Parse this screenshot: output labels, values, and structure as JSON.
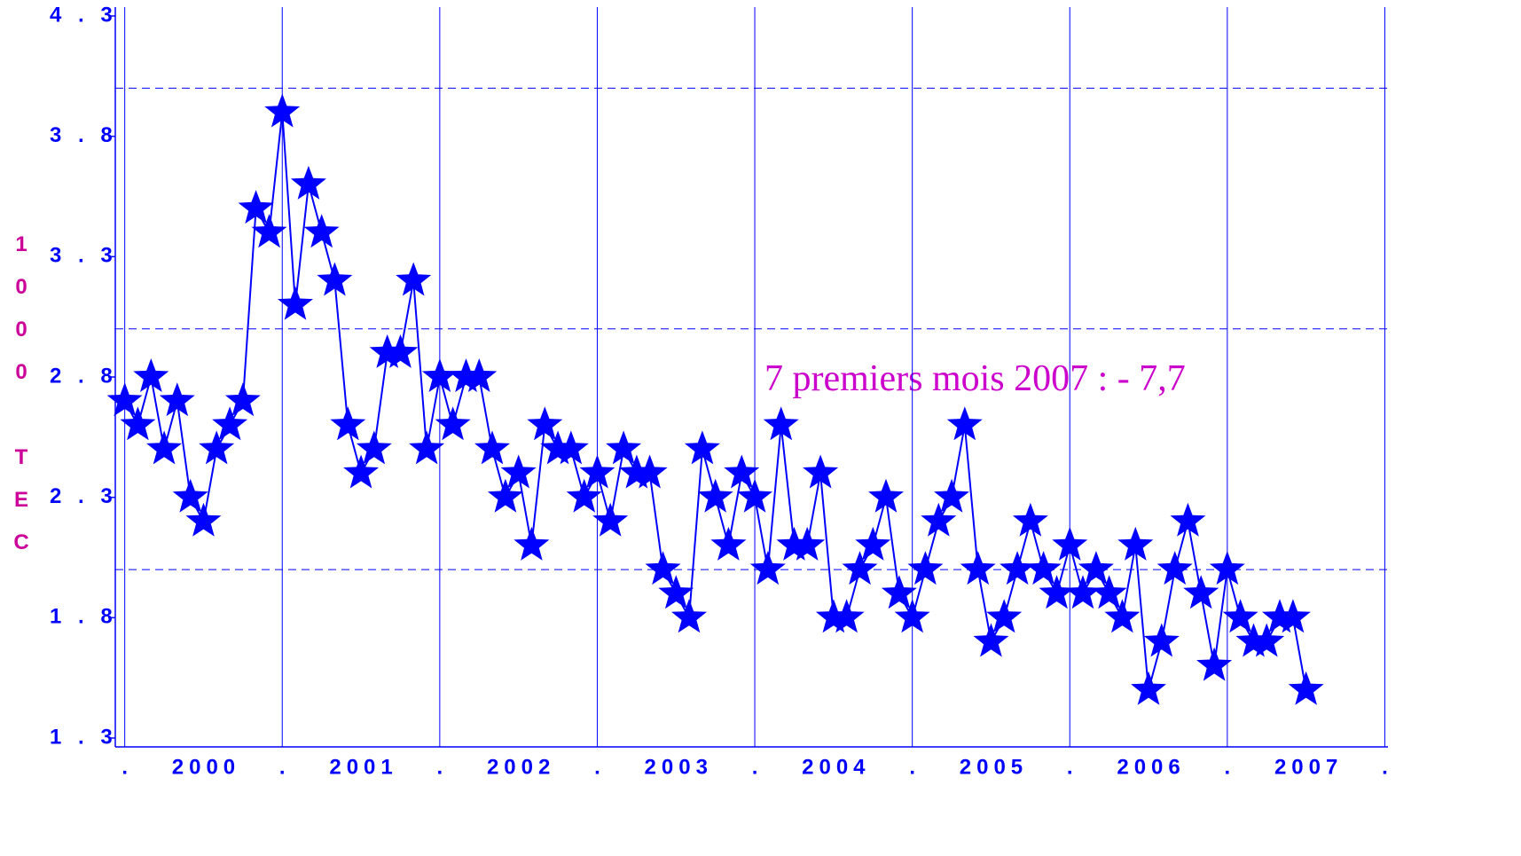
{
  "chart_data": {
    "type": "line",
    "ylabel": "1000 TEC",
    "annotation": "7 premiers mois 2007 : - 7,7",
    "color": "#0000ff",
    "marker": "star",
    "x": [
      2000,
      2000.083,
      2000.167,
      2000.25,
      2000.333,
      2000.417,
      2000.5,
      2000.583,
      2000.667,
      2000.75,
      2000.833,
      2000.917,
      2001,
      2001.083,
      2001.167,
      2001.25,
      2001.333,
      2001.417,
      2001.5,
      2001.583,
      2001.667,
      2001.75,
      2001.833,
      2001.917,
      2002,
      2002.083,
      2002.167,
      2002.25,
      2002.333,
      2002.417,
      2002.5,
      2002.583,
      2002.667,
      2002.75,
      2002.833,
      2002.917,
      2003,
      2003.083,
      2003.167,
      2003.25,
      2003.333,
      2003.417,
      2003.5,
      2003.583,
      2003.667,
      2003.75,
      2003.833,
      2003.917,
      2004,
      2004.083,
      2004.167,
      2004.25,
      2004.333,
      2004.417,
      2004.5,
      2004.583,
      2004.667,
      2004.75,
      2004.833,
      2004.917,
      2005,
      2005.083,
      2005.167,
      2005.25,
      2005.333,
      2005.417,
      2005.5,
      2005.583,
      2005.667,
      2005.75,
      2005.833,
      2005.917,
      2006,
      2006.083,
      2006.167,
      2006.25,
      2006.333,
      2006.417,
      2006.5,
      2006.583,
      2006.667,
      2006.75,
      2006.833,
      2006.917,
      2007,
      2007.083,
      2007.167,
      2007.25,
      2007.333,
      2007.417,
      2007.5
    ],
    "values": [
      2.7,
      2.6,
      2.8,
      2.5,
      2.7,
      2.3,
      2.2,
      2.5,
      2.6,
      2.7,
      3.5,
      3.4,
      3.9,
      3.1,
      3.6,
      3.4,
      3.2,
      2.6,
      2.4,
      2.5,
      2.9,
      2.9,
      3.2,
      2.5,
      2.8,
      2.6,
      2.8,
      2.8,
      2.5,
      2.3,
      2.4,
      2.1,
      2.6,
      2.5,
      2.5,
      2.3,
      2.4,
      2.2,
      2.5,
      2.4,
      2.4,
      2.0,
      1.9,
      1.8,
      2.5,
      2.3,
      2.1,
      2.4,
      2.3,
      2.0,
      2.6,
      2.1,
      2.1,
      2.4,
      1.8,
      1.8,
      2.0,
      2.1,
      2.3,
      1.9,
      1.8,
      2.0,
      2.2,
      2.3,
      2.6,
      2.0,
      1.7,
      1.8,
      2.0,
      2.2,
      2.0,
      1.9,
      2.1,
      1.9,
      2.0,
      1.9,
      1.8,
      2.1,
      1.5,
      1.7,
      2.0,
      2.2,
      1.9,
      1.6,
      2.0,
      1.8,
      1.7,
      1.7,
      1.8,
      1.8,
      1.5
    ],
    "xlim": [
      1999.94,
      2008.02
    ],
    "ylim": [
      1.3,
      4.3
    ],
    "yticks": [
      {
        "value": 1.3,
        "label": "1 . 3"
      },
      {
        "value": 1.8,
        "label": "1 . 8"
      },
      {
        "value": 2.3,
        "label": "2 . 3"
      },
      {
        "value": 2.8,
        "label": "2 . 8"
      },
      {
        "value": 3.3,
        "label": "3 . 3"
      },
      {
        "value": 3.8,
        "label": "3 . 8"
      },
      {
        "value": 4.3,
        "label": "4 . 3"
      }
    ],
    "xticks": [
      {
        "value": 2000,
        "label": "."
      },
      {
        "value": 2000.5,
        "label": "2000"
      },
      {
        "value": 2001,
        "label": "."
      },
      {
        "value": 2001.5,
        "label": "2001"
      },
      {
        "value": 2002,
        "label": "."
      },
      {
        "value": 2002.5,
        "label": "2002"
      },
      {
        "value": 2003,
        "label": "."
      },
      {
        "value": 2003.5,
        "label": "2003"
      },
      {
        "value": 2004,
        "label": "."
      },
      {
        "value": 2004.5,
        "label": "2004"
      },
      {
        "value": 2005,
        "label": "."
      },
      {
        "value": 2005.5,
        "label": "2005"
      },
      {
        "value": 2006,
        "label": "."
      },
      {
        "value": 2006.5,
        "label": "2006"
      },
      {
        "value": 2007,
        "label": "."
      },
      {
        "value": 2007.5,
        "label": "2007"
      },
      {
        "value": 2008,
        "label": "."
      }
    ],
    "hlines": [
      2,
      3,
      4
    ],
    "hline_style": "dashed",
    "xgrid": true
  }
}
